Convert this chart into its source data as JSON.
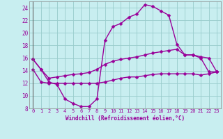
{
  "xlabel": "Windchill (Refroidissement éolien,°C)",
  "hours": [
    0,
    1,
    2,
    3,
    4,
    5,
    6,
    7,
    8,
    9,
    10,
    11,
    12,
    13,
    14,
    15,
    16,
    17,
    18,
    19,
    20,
    21,
    22,
    23
  ],
  "line1": [
    15.8,
    14.2,
    12.2,
    11.8,
    9.5,
    8.8,
    8.3,
    8.3,
    9.5,
    18.8,
    21.0,
    21.5,
    22.5,
    23.0,
    24.5,
    24.2,
    23.5,
    22.8,
    18.2,
    16.5,
    16.5,
    16.0,
    13.8,
    13.8
  ],
  "line2": [
    15.8,
    14.2,
    12.8,
    13.0,
    13.2,
    13.4,
    13.5,
    13.7,
    14.2,
    15.0,
    15.5,
    15.8,
    16.0,
    16.2,
    16.5,
    16.8,
    17.0,
    17.2,
    17.4,
    16.5,
    16.5,
    16.2,
    16.0,
    13.8
  ],
  "line3": [
    14.2,
    12.2,
    12.0,
    12.0,
    12.0,
    12.0,
    12.0,
    12.0,
    12.0,
    12.2,
    12.5,
    12.8,
    13.0,
    13.0,
    13.2,
    13.4,
    13.5,
    13.5,
    13.5,
    13.5,
    13.5,
    13.3,
    13.5,
    13.8
  ],
  "ylim": [
    8,
    25
  ],
  "yticks": [
    8,
    10,
    12,
    14,
    16,
    18,
    20,
    22,
    24
  ],
  "xticks": [
    0,
    1,
    2,
    3,
    4,
    5,
    6,
    7,
    8,
    9,
    10,
    11,
    12,
    13,
    14,
    15,
    16,
    17,
    18,
    19,
    20,
    21,
    22,
    23
  ],
  "line_color": "#990099",
  "bg_color": "#c8eef0",
  "grid_color": "#99cccc",
  "marker": "D",
  "marker_size": 2.5,
  "line_width": 1.0
}
